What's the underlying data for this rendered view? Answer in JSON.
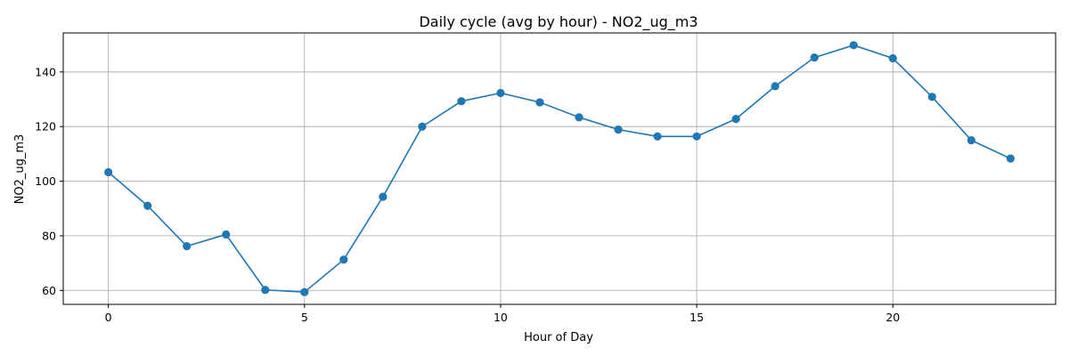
{
  "chart_data": {
    "type": "line",
    "title": "Daily cycle (avg by hour) - NO2_ug_m3",
    "xlabel": "Hour of Day",
    "ylabel": "NO2_ug_m3",
    "x": [
      0,
      1,
      2,
      3,
      4,
      5,
      6,
      7,
      8,
      9,
      10,
      11,
      12,
      13,
      14,
      15,
      16,
      17,
      18,
      19,
      20,
      21,
      22,
      23
    ],
    "series": [
      {
        "values": [
          103.3,
          91.0,
          76.2,
          80.5,
          60.2,
          59.4,
          71.3,
          94.3,
          120.0,
          129.3,
          132.3,
          128.9,
          123.4,
          118.9,
          116.4,
          116.4,
          122.8,
          134.8,
          145.3,
          149.8,
          145.0,
          130.9,
          115.0,
          108.3
        ],
        "color": "#1f77b4"
      }
    ],
    "xlim": [
      -1.15,
      24.15
    ],
    "ylim": [
      54.9,
      154.3
    ],
    "xticks": [
      0,
      5,
      10,
      15,
      20
    ],
    "yticks": [
      60,
      80,
      100,
      120,
      140
    ],
    "grid": true,
    "marker": "circle"
  }
}
